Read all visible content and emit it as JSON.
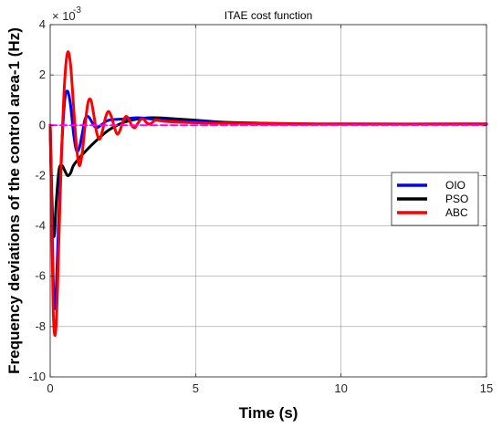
{
  "chart_data": {
    "type": "line",
    "title": "ITAE cost function",
    "xlabel": "Time (s)",
    "ylabel": "Frequency deviations of the control area-1 (Hz)",
    "y_exponent_label": "× 10",
    "y_exponent_power": "-3",
    "xlim": [
      0,
      15
    ],
    "ylim": [
      -10,
      4
    ],
    "x_ticks": [
      0,
      5,
      10,
      15
    ],
    "y_ticks": [
      -10,
      -8,
      -6,
      -4,
      -2,
      0,
      2,
      4
    ],
    "x_tick_labels": [
      "0",
      "5",
      "10",
      "15"
    ],
    "y_tick_labels": [
      "-10",
      "-8",
      "-6",
      "-4",
      "-2",
      "0",
      "2",
      "4"
    ],
    "grid": true,
    "legend_position": "right",
    "series": [
      {
        "name": "OIO",
        "color": "#0000ff",
        "x": [
          0,
          0.05,
          0.1,
          0.15,
          0.2,
          0.3,
          0.4,
          0.5,
          0.6,
          0.7,
          0.8,
          0.9,
          1.0,
          1.1,
          1.2,
          1.3,
          1.4,
          1.5,
          1.6,
          1.8,
          2.0,
          2.5,
          3.0,
          3.5,
          4.0,
          5.0,
          6.0,
          8.0,
          10.0,
          15.0
        ],
        "y": [
          0,
          -3.0,
          -6.0,
          -7.2,
          -6.8,
          -3.5,
          -0.8,
          1.0,
          1.35,
          0.8,
          -0.3,
          -1.0,
          -0.9,
          -0.35,
          0.25,
          0.35,
          0.2,
          0.0,
          -0.1,
          0.05,
          0.2,
          0.25,
          0.3,
          0.25,
          0.2,
          0.15,
          0.1,
          0.05,
          0.05,
          0.05
        ]
      },
      {
        "name": "PSO",
        "color": "#000000",
        "x": [
          0,
          0.05,
          0.1,
          0.15,
          0.2,
          0.3,
          0.4,
          0.5,
          0.6,
          0.7,
          0.8,
          1.0,
          1.2,
          1.5,
          2.0,
          2.5,
          3.0,
          3.5,
          4.0,
          5.0,
          6.0,
          8.0,
          10.0,
          15.0
        ],
        "y": [
          0,
          -2.5,
          -4.2,
          -4.3,
          -3.2,
          -1.8,
          -1.6,
          -1.8,
          -2.0,
          -1.9,
          -1.6,
          -1.3,
          -1.05,
          -0.7,
          -0.2,
          0.1,
          0.25,
          0.3,
          0.28,
          0.2,
          0.12,
          0.07,
          0.05,
          0.05
        ]
      },
      {
        "name": "ABC",
        "color": "#ff0000",
        "x": [
          0,
          0.05,
          0.1,
          0.15,
          0.2,
          0.25,
          0.3,
          0.4,
          0.5,
          0.6,
          0.7,
          0.8,
          0.9,
          1.0,
          1.1,
          1.2,
          1.3,
          1.4,
          1.5,
          1.6,
          1.7,
          1.8,
          1.9,
          2.0,
          2.1,
          2.2,
          2.3,
          2.4,
          2.5,
          2.6,
          2.7,
          2.8,
          2.9,
          3.0,
          3.1,
          3.2,
          3.3,
          3.4,
          3.5,
          3.6,
          3.7,
          4.0,
          5.0,
          6.0,
          10.0,
          15.0
        ],
        "y": [
          0,
          -3.5,
          -7.2,
          -8.3,
          -8.0,
          -6.5,
          -4.5,
          -0.8,
          1.8,
          2.9,
          2.4,
          0.8,
          -0.8,
          -1.6,
          -1.1,
          0.0,
          0.9,
          1.0,
          0.4,
          -0.3,
          -0.55,
          -0.2,
          0.3,
          0.55,
          0.35,
          -0.05,
          -0.35,
          -0.2,
          0.15,
          0.35,
          0.25,
          0.0,
          -0.1,
          0.05,
          0.22,
          0.25,
          0.12,
          0.05,
          0.1,
          0.2,
          0.2,
          0.15,
          0.1,
          0.08,
          0.05,
          0.05
        ]
      },
      {
        "name": "",
        "color": "#ff00ff",
        "style": "dashed",
        "x": [
          0,
          15
        ],
        "y": [
          0,
          0
        ]
      }
    ]
  }
}
